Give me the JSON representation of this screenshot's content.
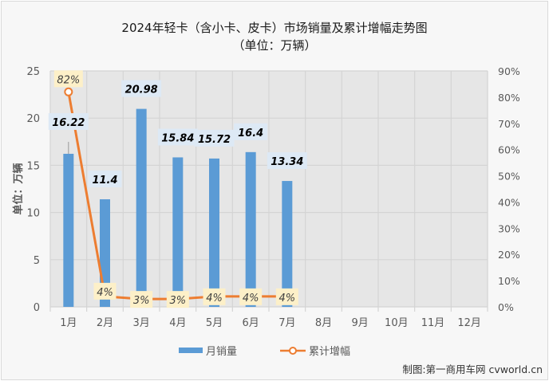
{
  "title": {
    "line1": "2024年轻卡（含小卡、皮卡）市场销量及累计增幅走势图",
    "line2": "（单位：万辆）"
  },
  "y_axis_left_label": "单位：万辆",
  "legend": {
    "bar": "月销量",
    "line": "累计增幅"
  },
  "credit": "制图:第一商用车网 cvworld.cn",
  "colors": {
    "bar": "#5b9bd5",
    "line": "#ed7d31",
    "plot_bg": "#e6e6e6",
    "grid": "#d4d4d4",
    "bar_label_bg": "#dde9f5",
    "line_label_bg": "#fdf0c8"
  },
  "chart_data": {
    "type": "bar+line",
    "title": "2024年轻卡（含小卡、皮卡）市场销量及累计增幅走势图（单位：万辆）",
    "categories": [
      "1月",
      "2月",
      "3月",
      "4月",
      "5月",
      "6月",
      "7月",
      "8月",
      "9月",
      "10月",
      "11月",
      "12月"
    ],
    "series": [
      {
        "name": "月销量",
        "type": "bar",
        "axis": "left",
        "values": [
          16.22,
          11.4,
          20.98,
          15.84,
          15.72,
          16.4,
          13.34,
          null,
          null,
          null,
          null,
          null
        ],
        "labels": [
          "16.22",
          "11.4",
          "20.98",
          "15.84",
          "15.72",
          "16.4",
          "13.34"
        ]
      },
      {
        "name": "累计增幅",
        "type": "line",
        "axis": "right",
        "values": [
          82,
          4,
          3,
          3,
          4,
          4,
          4,
          null,
          null,
          null,
          null,
          null
        ],
        "labels": [
          "82%",
          "4%",
          "3%",
          "3%",
          "4%",
          "4%",
          "4%"
        ]
      }
    ],
    "ylabel": "单位：万辆",
    "ylim": [
      0,
      25
    ],
    "yticks": [
      0,
      5,
      10,
      15,
      20,
      25
    ],
    "y2lim": [
      0,
      90
    ],
    "y2ticks": [
      "0%",
      "10%",
      "20%",
      "30%",
      "40%",
      "50%",
      "60%",
      "70%",
      "80%",
      "90%"
    ],
    "grid": true,
    "legend_position": "bottom"
  }
}
